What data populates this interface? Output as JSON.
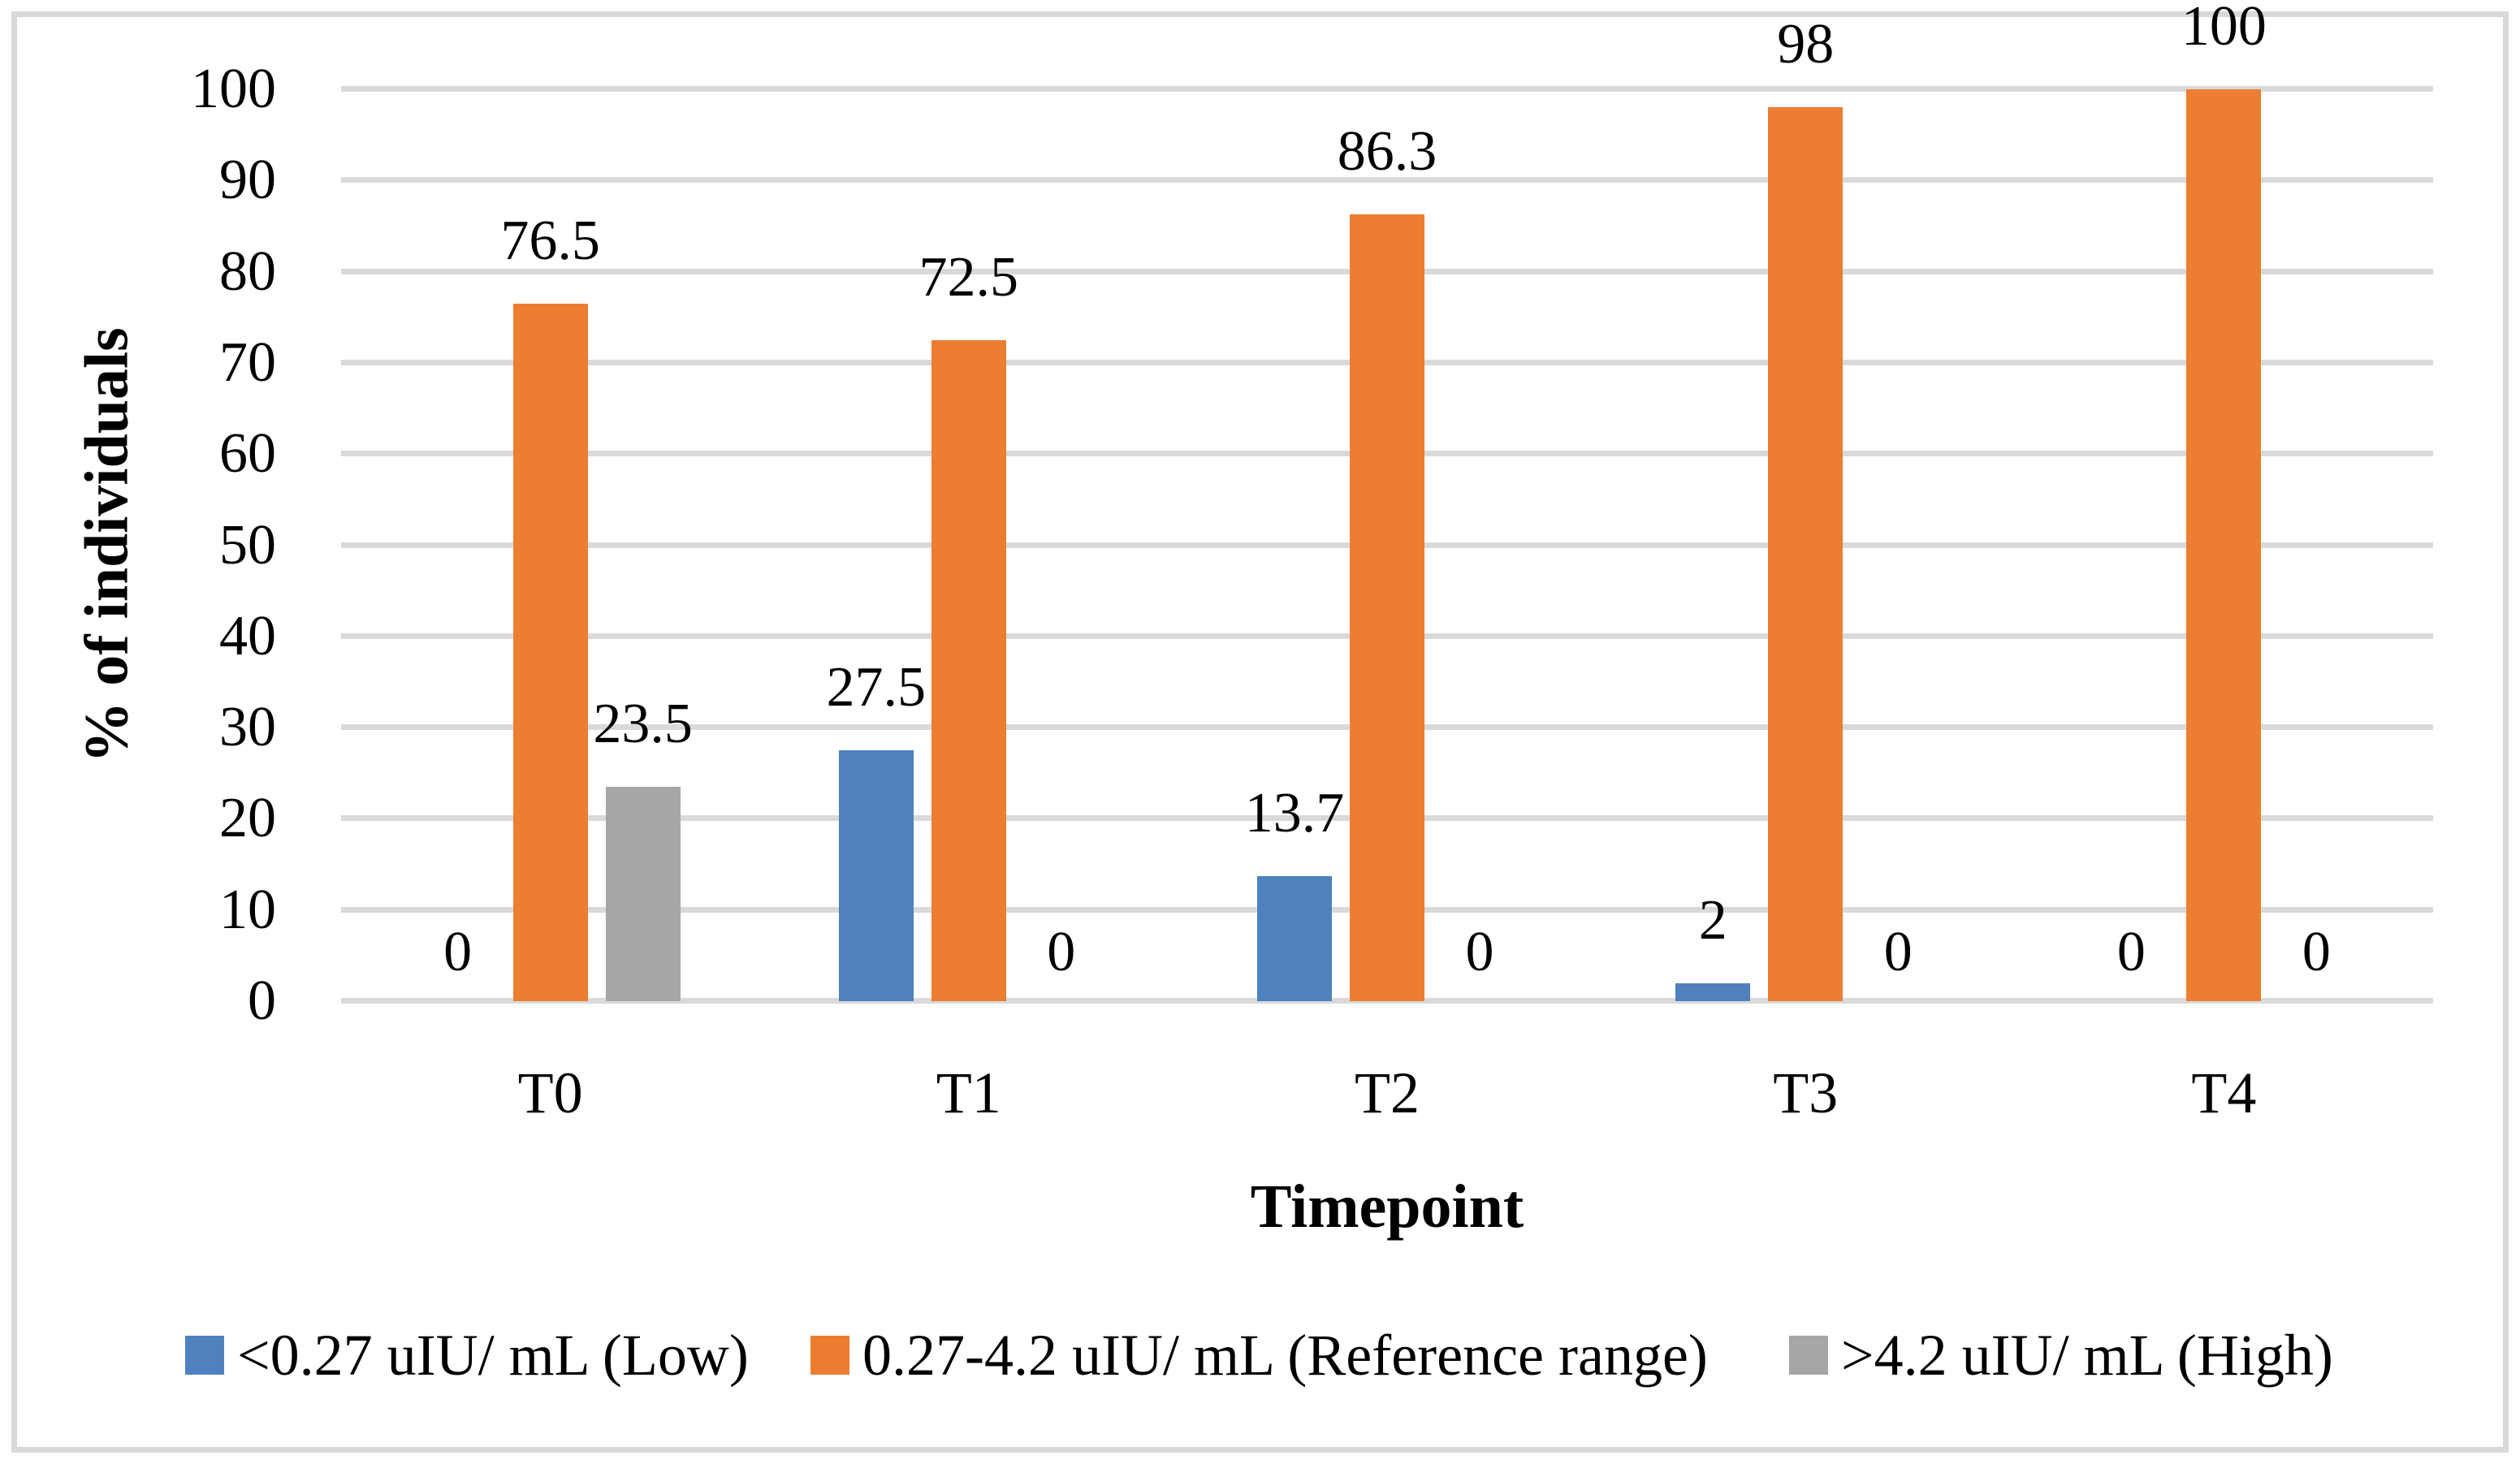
{
  "chart_data": {
    "type": "bar",
    "categories": [
      "T0",
      "T1",
      "T2",
      "T3",
      "T4"
    ],
    "series": [
      {
        "name": "<0.27 uIU/ mL (Low)",
        "color": "#4E81BD",
        "values": [
          0,
          27.5,
          13.7,
          2,
          0
        ]
      },
      {
        "name": "0.27-4.2 uIU/ mL (Reference range)",
        "color": "#ED7D31",
        "values": [
          76.5,
          72.5,
          86.3,
          98,
          100
        ]
      },
      {
        "name": ">4.2 uIU/ mL (High)",
        "color": "#A6A6A6",
        "values": [
          23.5,
          0,
          0,
          0,
          0
        ]
      }
    ],
    "xlabel": "Timepoint",
    "ylabel": "% of individuals",
    "ylim": [
      0,
      100
    ],
    "yticks": [
      0,
      10,
      20,
      30,
      40,
      50,
      60,
      70,
      80,
      90,
      100
    ],
    "grid": true,
    "gridline_color": "#D9D9D9",
    "data_labels": true,
    "legend_position": "bottom"
  }
}
